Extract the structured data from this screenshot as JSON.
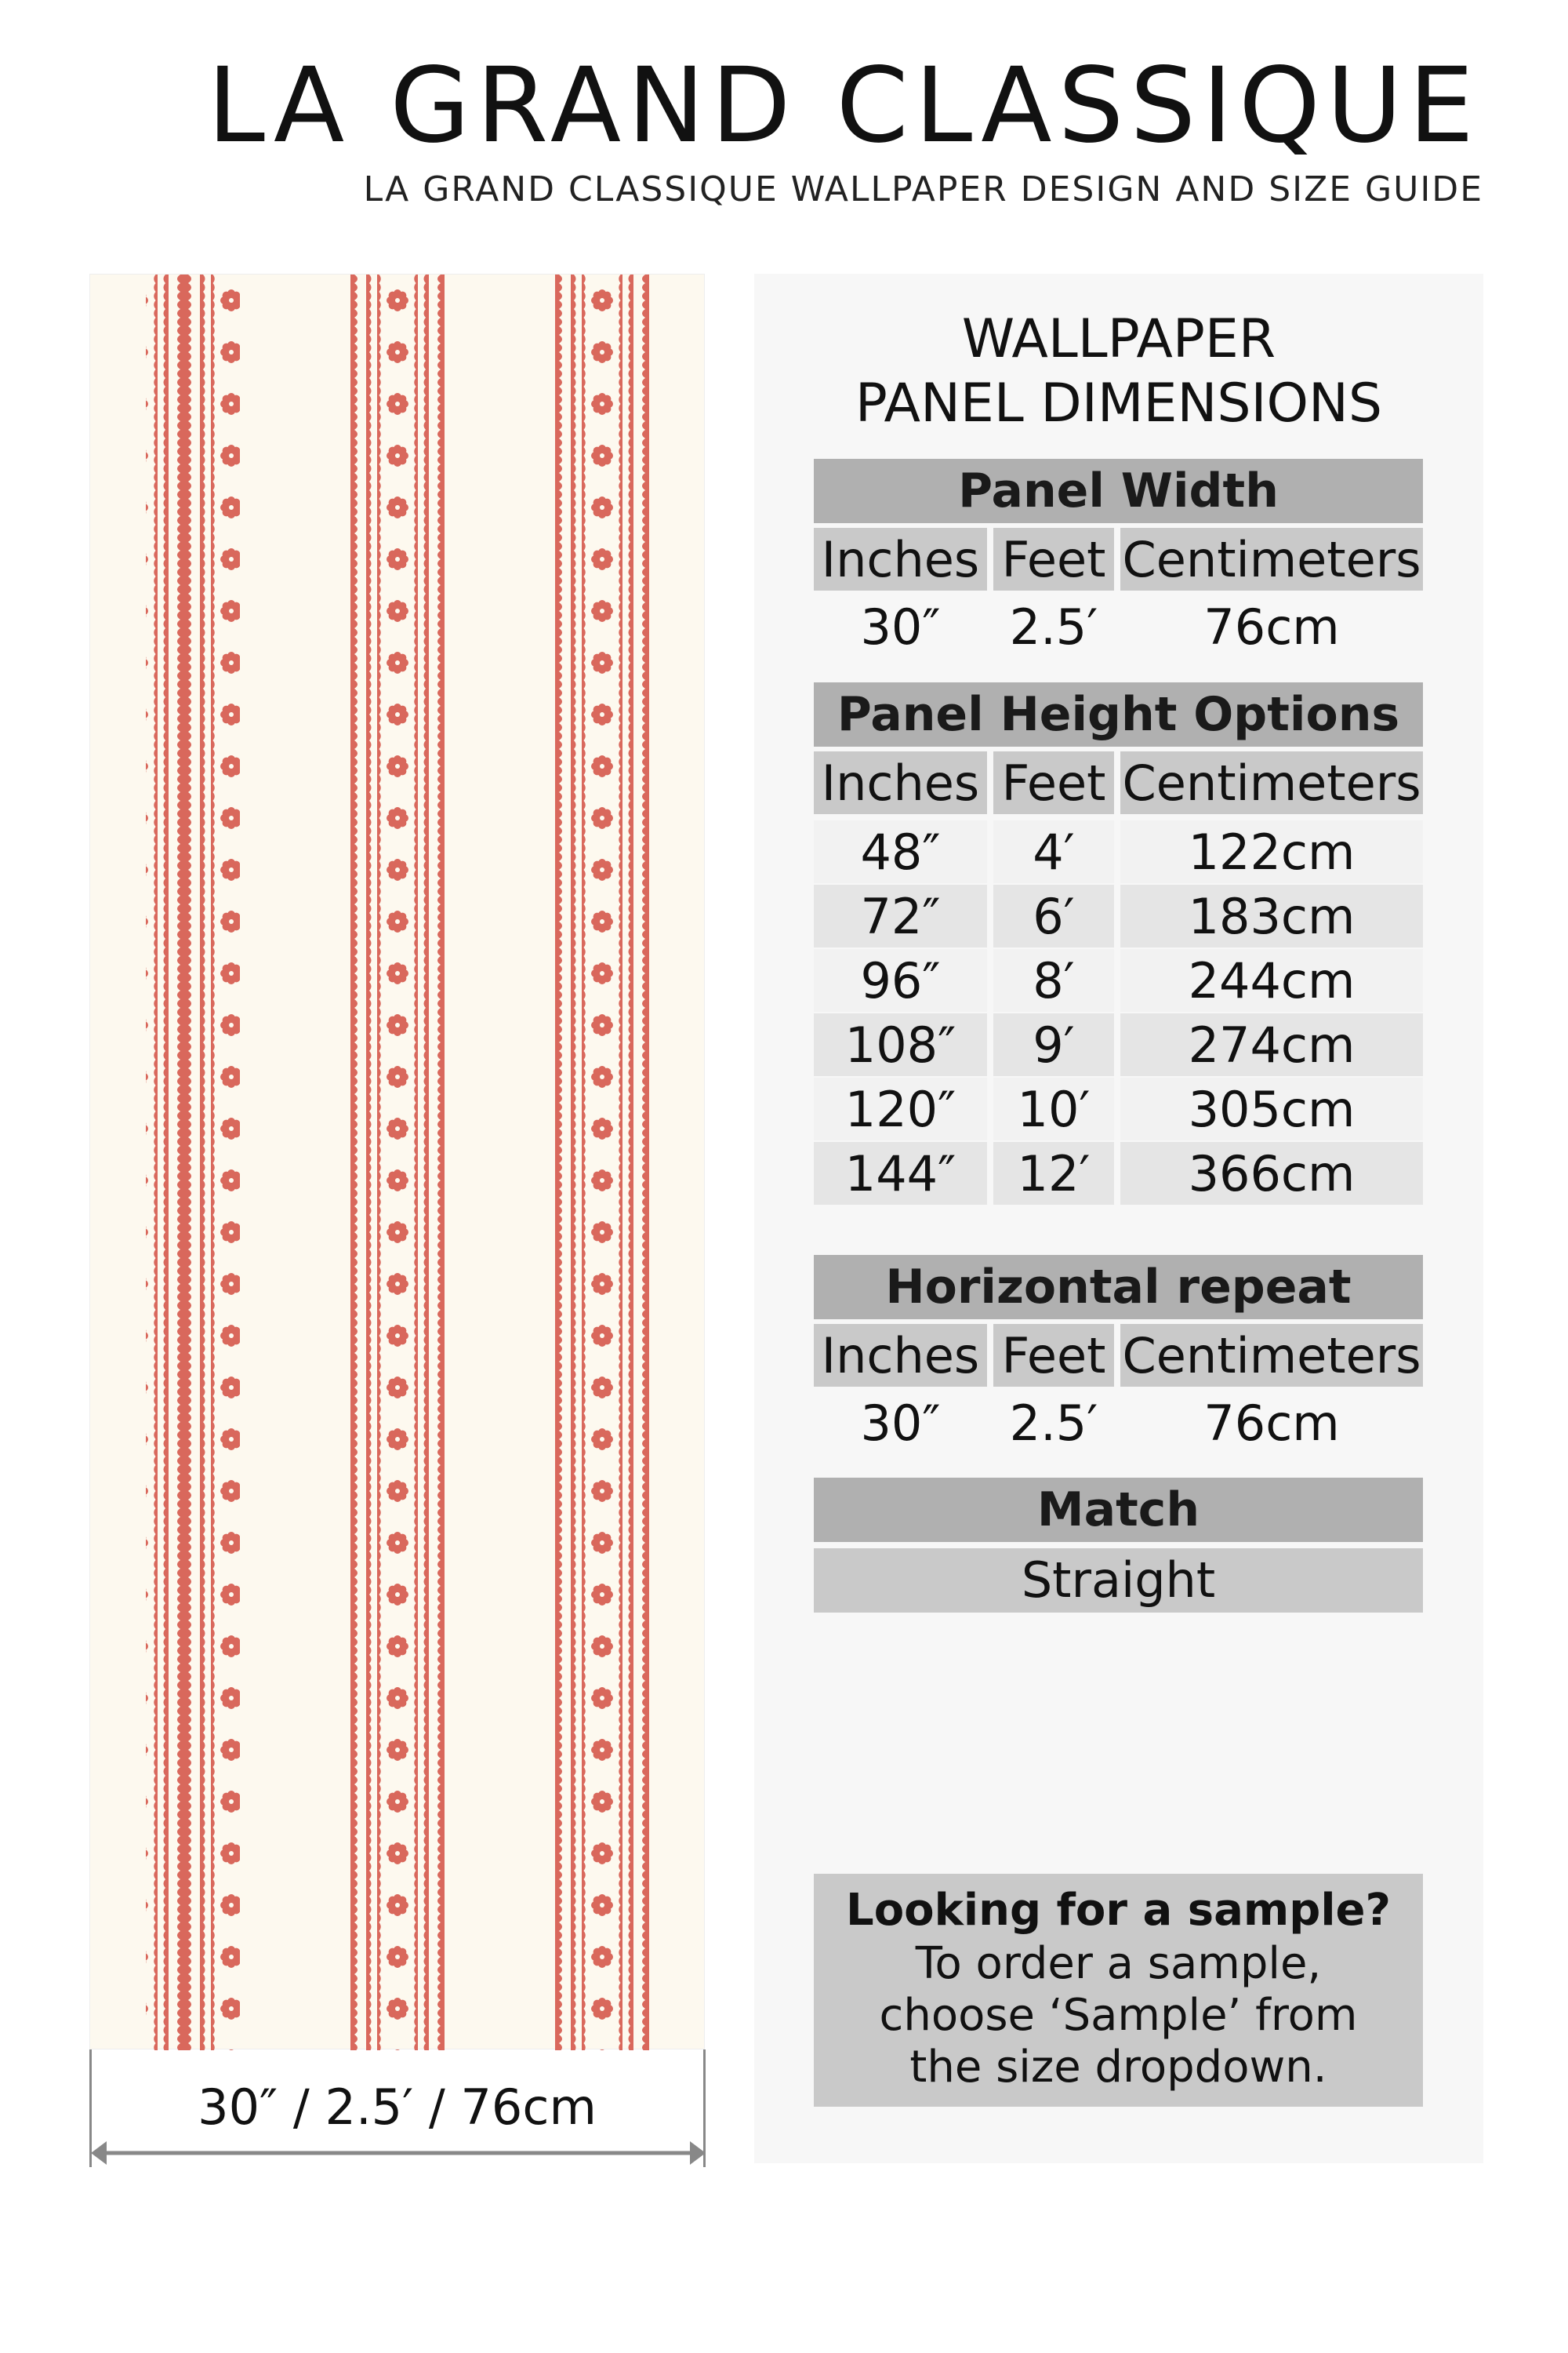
{
  "header": {
    "title": "LA GRAND CLASSIQUE",
    "subtitle": "LA GRAND CLASSIQUE WALLPAPER DESIGN AND SIZE GUIDE"
  },
  "preview": {
    "dimension_label": "30″ / 2.5′ / 76cm",
    "colors": {
      "background": "#fdf9ef",
      "pattern": "#d9685c"
    }
  },
  "panel": {
    "title_line1": "WALLPAPER",
    "title_line2": "PANEL DIMENSIONS",
    "columns": [
      "Inches",
      "Feet",
      "Centimeters"
    ],
    "width": {
      "heading": "Panel Width",
      "values": [
        "30″",
        "2.5′",
        "76cm"
      ]
    },
    "height": {
      "heading": "Panel Height Options",
      "rows": [
        [
          "48″",
          "4′",
          "122cm"
        ],
        [
          "72″",
          "6′",
          "183cm"
        ],
        [
          "96″",
          "8′",
          "244cm"
        ],
        [
          "108″",
          "9′",
          "274cm"
        ],
        [
          "120″",
          "10′",
          "305cm"
        ],
        [
          "144″",
          "12′",
          "366cm"
        ]
      ]
    },
    "repeat": {
      "heading": "Horizontal repeat",
      "values": [
        "30″",
        "2.5′",
        "76cm"
      ]
    },
    "match": {
      "heading": "Match",
      "value": "Straight"
    },
    "sample": {
      "question": "Looking for a sample?",
      "line1": "To order a sample,",
      "line2": "choose ‘Sample’ from",
      "line3": "the size dropdown."
    }
  }
}
